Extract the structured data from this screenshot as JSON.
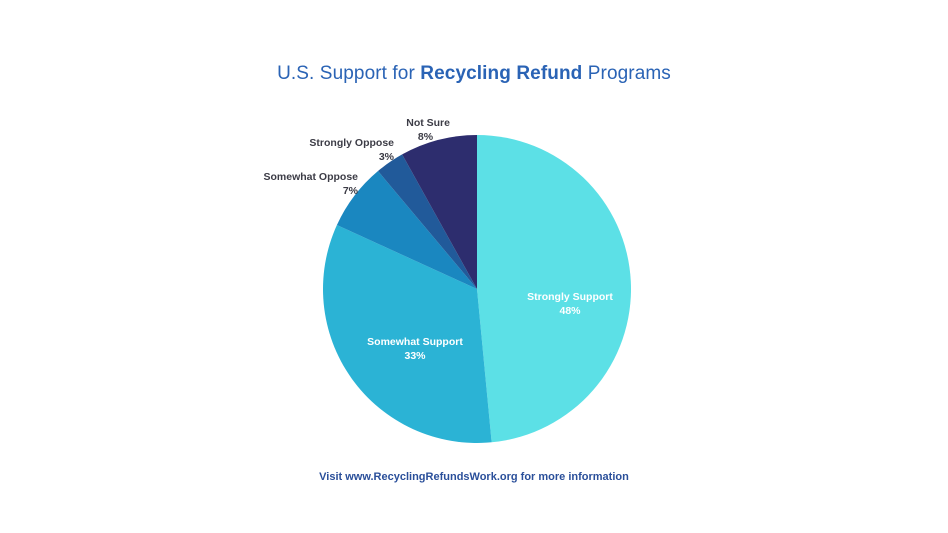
{
  "title": {
    "prefix": "U.S. Support for ",
    "emphasis": "Recycling Refund",
    "suffix": " Programs"
  },
  "footer": "Visit www.RecyclingRefundsWork.org for more information",
  "labels": {
    "strongly_support": {
      "name": "Strongly Support",
      "pct": "48%"
    },
    "somewhat_support": {
      "name": "Somewhat Support",
      "pct": "33%"
    },
    "somewhat_oppose": {
      "name": "Somewhat Oppose",
      "pct": "7%"
    },
    "strongly_oppose": {
      "name": "Strongly Oppose",
      "pct": "3%"
    },
    "not_sure": {
      "name": "Not Sure",
      "pct": "8%"
    }
  },
  "chart_data": {
    "type": "pie",
    "title": "U.S. Support for Recycling Refund Programs",
    "categories": [
      "Strongly Support",
      "Somewhat Support",
      "Somewhat Oppose",
      "Strongly Oppose",
      "Not Sure"
    ],
    "values": [
      48,
      33,
      7,
      3,
      8
    ],
    "unit": "%",
    "colors": [
      "#5ce0e6",
      "#2bb3d5",
      "#1a87c0",
      "#215a9a",
      "#2d2d6e"
    ],
    "start_angle": "12 o'clock, clockwise",
    "annotation": "Visit www.RecyclingRefundsWork.org for more information"
  }
}
